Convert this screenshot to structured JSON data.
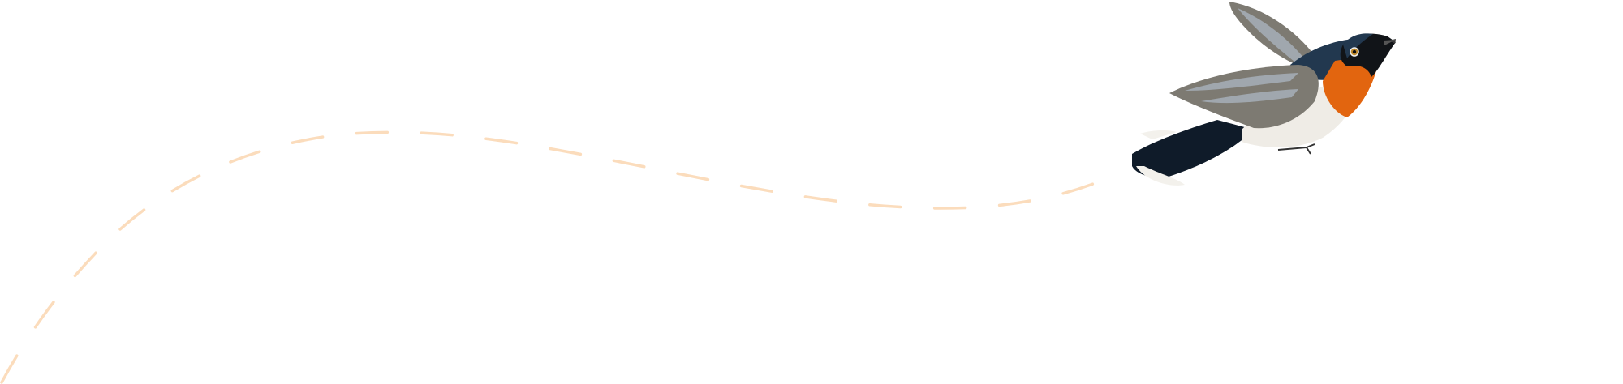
{
  "illustration": {
    "subject": "bird-in-flight",
    "colors": {
      "path": "#fbdcbc",
      "wing": "#7d7a72",
      "wing_light": "#a9b3bd",
      "back": "#22384f",
      "head": "#111418",
      "throat": "#e2650f",
      "belly": "#efece6",
      "tail": "#0f1b29",
      "tail_tip": "#f3f1ec"
    }
  }
}
